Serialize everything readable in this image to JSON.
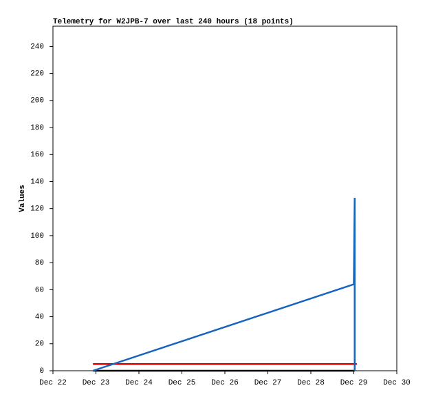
{
  "chart_data": {
    "type": "line",
    "title": "Telemetry for W2JPB-7 over last 240 hours (18 points)",
    "y_label": "Values",
    "xlim": [
      22,
      30
    ],
    "xticks": [
      {
        "value": 22,
        "label": "Dec 22"
      },
      {
        "value": 23,
        "label": "Dec 23"
      },
      {
        "value": 24,
        "label": "Dec 24"
      },
      {
        "value": 25,
        "label": "Dec 25"
      },
      {
        "value": 26,
        "label": "Dec 26"
      },
      {
        "value": 27,
        "label": "Dec 27"
      },
      {
        "value": 28,
        "label": "Dec 28"
      },
      {
        "value": 29,
        "label": "Dec 29"
      },
      {
        "value": 30,
        "label": "Dec 30"
      }
    ],
    "ylim": [
      0,
      255
    ],
    "yticks": [
      0,
      20,
      40,
      60,
      80,
      100,
      120,
      140,
      160,
      180,
      200,
      220,
      240
    ],
    "series": [
      {
        "color": "#000000",
        "x": [
          22.93,
          29.02
        ],
        "values": [
          0,
          0
        ]
      },
      {
        "color": "#e00000",
        "x": [
          22.93,
          29.07
        ],
        "values": [
          5,
          5
        ]
      },
      {
        "color": "#1565c0",
        "x": [
          22.93,
          29.0,
          29.02,
          29.02
        ],
        "values": [
          0,
          64,
          128,
          0
        ]
      }
    ]
  }
}
